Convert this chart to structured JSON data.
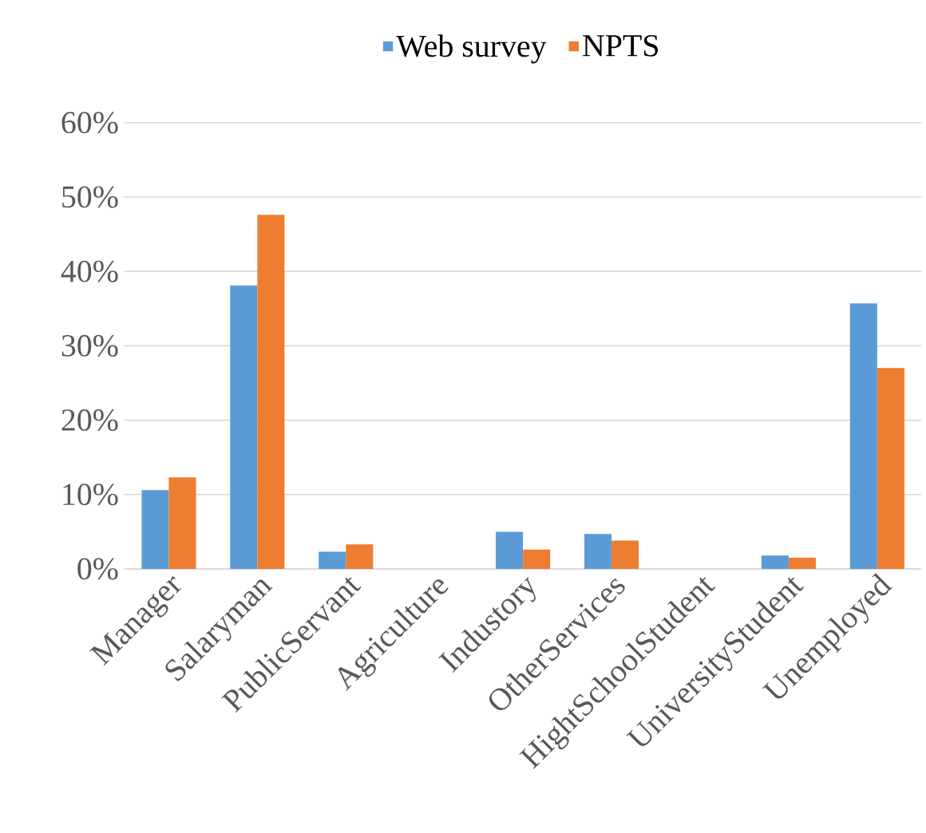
{
  "chart_data": {
    "type": "bar",
    "categories": [
      "Manager",
      "Salaryman",
      "PublicServant",
      "Agriculture",
      "Industory",
      "OtherServices",
      "HightSchoolStudent",
      "UniversityStudent",
      "Unemployed"
    ],
    "series": [
      {
        "name": "Web survey",
        "color": "#5b9bd5",
        "values": [
          10.6,
          38.1,
          2.3,
          0,
          5.0,
          4.7,
          0,
          1.8,
          35.7
        ]
      },
      {
        "name": "NPTS",
        "color": "#ed7d31",
        "values": [
          12.3,
          47.6,
          3.3,
          0,
          2.6,
          3.8,
          0,
          1.5,
          27.0
        ]
      }
    ],
    "ylim": [
      0,
      60
    ],
    "yticks": [
      {
        "value": 0,
        "label": "0%"
      },
      {
        "value": 10,
        "label": "10%"
      },
      {
        "value": 20,
        "label": "20%"
      },
      {
        "value": 30,
        "label": "30%"
      },
      {
        "value": 40,
        "label": "40%"
      },
      {
        "value": 50,
        "label": "50%"
      },
      {
        "value": 60,
        "label": "60%"
      }
    ],
    "grid": "y",
    "legend": "top"
  }
}
